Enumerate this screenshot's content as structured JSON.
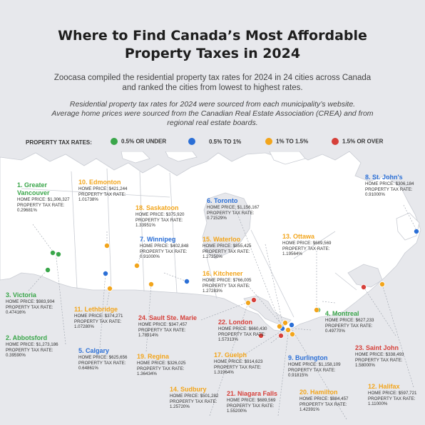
{
  "title_line1": "Where to Find Canada’s Most Affordable",
  "title_line2": "Property Taxes in 2024",
  "subtitle_line1": "Zoocasa compiled the residential property tax rates for 2024 in 24 cities across Canada",
  "subtitle_line2": "and ranked the cities from lowest to highest rates.",
  "note_line1": "Residential property tax rates for 2024 were sourced from each municipality’s website.",
  "note_line2": "Average home prices were sourced from the Canadian Real Estate Association (CREA) and from",
  "note_line3": "regional real estate boards.",
  "legend": {
    "title": "PROPERTY TAX RATES:",
    "items": [
      {
        "label": "0.5% OR UNDER",
        "color": "#3aa64a"
      },
      {
        "label": "0.5% TO 1%",
        "color": "#2b6fd6"
      },
      {
        "label": "1% TO 1.5%",
        "color": "#f2a51c"
      },
      {
        "label": "1.5% OR OVER",
        "color": "#d6403a"
      }
    ]
  },
  "labels": {
    "home_price": "HOME PRICE:",
    "tax_rate": "PROPERTY TAX RATE:"
  },
  "cities": [
    {
      "name": "1. Greater Vancouver",
      "name_l1": "1. Greater",
      "name_l2": "Vancouver",
      "price": "$1,306,327",
      "rate": "0.29681%",
      "color": "#3aa64a"
    },
    {
      "name": "2. Abbotsford",
      "price": "$1,273,186",
      "rate": "0.39590%",
      "color": "#3aa64a"
    },
    {
      "name": "3. Victoria",
      "price": "$983,904",
      "rate": "0.47416%",
      "color": "#3aa64a"
    },
    {
      "name": "4. Montreal",
      "price": "$627,233",
      "rate": "0.49770%",
      "color": "#3aa64a"
    },
    {
      "name": "5. Calgary",
      "price": "$625,656",
      "rate": "0.64861%",
      "color": "#2b6fd6"
    },
    {
      "name": "6. Toronto",
      "price": "$1,156,167",
      "rate": "0.71529%",
      "color": "#2b6fd6"
    },
    {
      "name": "7. Winnipeg",
      "price": "$402,848",
      "rate": "0.91000%",
      "color": "#2b6fd6"
    },
    {
      "name": "8. St. John's",
      "price": "$306,184",
      "rate": "0.91000%",
      "color": "#2b6fd6"
    },
    {
      "name": "9. Burlington",
      "price": "$1,158,109",
      "rate": "0.91815%",
      "color": "#2b6fd6"
    },
    {
      "name": "10. Edmonton",
      "price": "$421,244",
      "rate": "1.01738%",
      "color": "#f2a51c"
    },
    {
      "name": "11. Lethbridge",
      "price": "$374,271",
      "rate": "1.07280%",
      "color": "#f2a51c"
    },
    {
      "name": "12. Halifax",
      "price": "$597,721",
      "rate": "1.11000%",
      "color": "#f2a51c"
    },
    {
      "name": "13. Ottawa",
      "price": "$689,569",
      "rate": "1.19564%",
      "color": "#f2a51c"
    },
    {
      "name": "14. Sudbury",
      "price": "$501,282",
      "rate": "1.25720%",
      "color": "#f2a51c"
    },
    {
      "name": "15. Waterloo",
      "price": "$855,425",
      "rate": "1.27250%",
      "color": "#f2a51c"
    },
    {
      "name": "16. Kitchener",
      "price": "$766,005",
      "rate": "1.27283%",
      "color": "#f2a51c"
    },
    {
      "name": "17. Guelph",
      "price": "$914,623",
      "rate": "1.31964%",
      "color": "#f2a51c"
    },
    {
      "name": "18. Saskatoon",
      "price": "$375,920",
      "rate": "1.33951%",
      "color": "#f2a51c"
    },
    {
      "name": "19. Regina",
      "price": "$326,025",
      "rate": "1.36434%",
      "color": "#f2a51c"
    },
    {
      "name": "20. Hamilton",
      "price": "$884,457",
      "rate": "1.42391%",
      "color": "#f2a51c"
    },
    {
      "name": "21. Niagara Falls",
      "price": "$689,569",
      "rate": "1.55200%",
      "color": "#d6403a"
    },
    {
      "name": "22. London",
      "price": "$660,430",
      "rate": "1.57313%",
      "color": "#d6403a"
    },
    {
      "name": "23. Saint John",
      "price": "$338,493",
      "rate": "1.58000%",
      "color": "#d6403a"
    },
    {
      "name": "24. Sault Ste. Marie",
      "price": "$347,457",
      "rate": "1.78914%",
      "color": "#d6403a"
    }
  ]
}
